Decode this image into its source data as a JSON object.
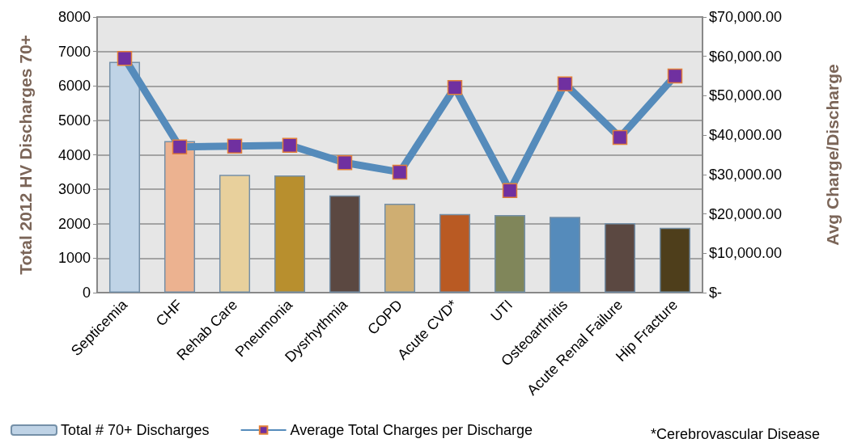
{
  "chart_data": {
    "type": "bar",
    "categories": [
      "Septicemia",
      "CHF",
      "Rehab Care",
      "Pneumonia",
      "Dysrhythmia",
      "COPD",
      "Acute CVD*",
      "UTI",
      "Osteoarthritis",
      "Acute Renal Failure",
      "Hip Fracture"
    ],
    "series": [
      {
        "name": "Total # 70+ Discharges",
        "color": "#bfd3e6",
        "colors": [
          "#bfd3e6",
          "#ecb290",
          "#e8d09c",
          "#b88f2e",
          "#5b4841",
          "#cfae72",
          "#b95a23",
          "#80865a",
          "#558bbb",
          "#5b4841",
          "#4e3e1b"
        ],
        "values": [
          6700,
          4400,
          3420,
          3400,
          2820,
          2580,
          2280,
          2250,
          2200,
          2020,
          1880
        ]
      },
      {
        "name": "Average Total Charges per Discharge",
        "type": "line",
        "axis": "y2",
        "color": "#558bbb",
        "values": [
          59500,
          37000,
          37200,
          37400,
          33000,
          30600,
          52100,
          25900,
          53000,
          39400,
          55000
        ]
      }
    ],
    "ylabel": "Total 2012 HV Discharges 70+",
    "y2label": "Avg Charge/Discharge",
    "ylim": [
      0,
      8000
    ],
    "yticks": [
      0,
      1000,
      2000,
      3000,
      4000,
      5000,
      6000,
      7000,
      8000
    ],
    "y2lim": [
      0,
      70000
    ],
    "y2ticks": [
      {
        "value": 0,
        "label": "$-"
      },
      {
        "value": 10000,
        "label": "$10,000.00"
      },
      {
        "value": 20000,
        "label": "$20,000.00"
      },
      {
        "value": 30000,
        "label": "$30,000.00"
      },
      {
        "value": 40000,
        "label": "$40,000.00"
      },
      {
        "value": 50000,
        "label": "$50,000.00"
      },
      {
        "value": 60000,
        "label": "$60,000.00"
      },
      {
        "value": 70000,
        "label": "$70,000.00"
      }
    ],
    "grid": "y",
    "legend": "bottom",
    "marker": "square",
    "annotations": [
      "*Cerebrovascular Disease"
    ]
  }
}
